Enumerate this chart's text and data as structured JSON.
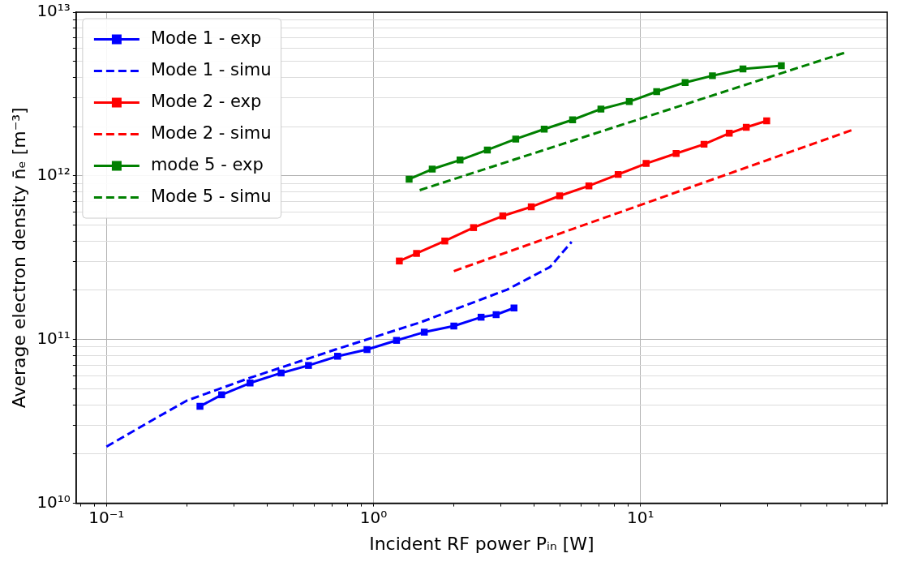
{
  "chart_data": {
    "type": "line",
    "xlabel": "Incident RF power Pᵢₙ [W]",
    "ylabel": "Average electron density n̄ₑ [m⁻³]",
    "log": "xy",
    "grid": true,
    "legend": "top left",
    "xlim": [
      0.077,
      84
    ],
    "ylim": [
      10000000000.0,
      10000000000000.0
    ],
    "xticks": [
      {
        "value": 0.08,
        "label": null
      },
      {
        "value": 0.09,
        "label": null
      },
      {
        "value": 0.1,
        "label": "10⁻¹"
      },
      {
        "value": 0.2,
        "label": null
      },
      {
        "value": 0.3,
        "label": null
      },
      {
        "value": 0.4,
        "label": null
      },
      {
        "value": 0.5,
        "label": null
      },
      {
        "value": 0.6,
        "label": null
      },
      {
        "value": 0.7,
        "label": null
      },
      {
        "value": 0.8,
        "label": null
      },
      {
        "value": 0.9,
        "label": null
      },
      {
        "value": 1,
        "label": "10⁰"
      },
      {
        "value": 2,
        "label": null
      },
      {
        "value": 3,
        "label": null
      },
      {
        "value": 4,
        "label": null
      },
      {
        "value": 5,
        "label": null
      },
      {
        "value": 6,
        "label": null
      },
      {
        "value": 7,
        "label": null
      },
      {
        "value": 8,
        "label": null
      },
      {
        "value": 9,
        "label": null
      },
      {
        "value": 10,
        "label": "10¹"
      },
      {
        "value": 20,
        "label": null
      },
      {
        "value": 30,
        "label": null
      },
      {
        "value": 40,
        "label": null
      },
      {
        "value": 50,
        "label": null
      },
      {
        "value": 60,
        "label": null
      },
      {
        "value": 70,
        "label": null
      },
      {
        "value": 80,
        "label": null
      }
    ],
    "yticks": [
      {
        "value": 10000000000.0,
        "label": "10¹⁰"
      },
      {
        "value": 20000000000.0,
        "label": null
      },
      {
        "value": 30000000000.0,
        "label": null
      },
      {
        "value": 40000000000.0,
        "label": null
      },
      {
        "value": 50000000000.0,
        "label": null
      },
      {
        "value": 60000000000.0,
        "label": null
      },
      {
        "value": 70000000000.0,
        "label": null
      },
      {
        "value": 80000000000.0,
        "label": null
      },
      {
        "value": 90000000000.0,
        "label": null
      },
      {
        "value": 100000000000.0,
        "label": "10¹¹"
      },
      {
        "value": 200000000000.0,
        "label": null
      },
      {
        "value": 300000000000.0,
        "label": null
      },
      {
        "value": 400000000000.0,
        "label": null
      },
      {
        "value": 500000000000.0,
        "label": null
      },
      {
        "value": 600000000000.0,
        "label": null
      },
      {
        "value": 700000000000.0,
        "label": null
      },
      {
        "value": 800000000000.0,
        "label": null
      },
      {
        "value": 900000000000.0,
        "label": null
      },
      {
        "value": 1000000000000.0,
        "label": "10¹²"
      },
      {
        "value": 2000000000000.0,
        "label": null
      },
      {
        "value": 3000000000000.0,
        "label": null
      },
      {
        "value": 4000000000000.0,
        "label": null
      },
      {
        "value": 5000000000000.0,
        "label": null
      },
      {
        "value": 6000000000000.0,
        "label": null
      },
      {
        "value": 7000000000000.0,
        "label": null
      },
      {
        "value": 8000000000000.0,
        "label": null
      },
      {
        "value": 9000000000000.0,
        "label": null
      },
      {
        "value": 10000000000000.0,
        "label": "10¹³"
      }
    ],
    "series": [
      {
        "name": "Mode 1 - exp",
        "color": "#0000ff",
        "marker": "square",
        "line_style": "solid",
        "x": [
          0.224,
          0.27,
          0.345,
          0.451,
          0.571,
          0.734,
          0.946,
          1.22,
          1.55,
          2.0,
          2.53,
          2.88,
          3.36
        ],
        "values": [
          39100000000.0,
          46000000000.0,
          54300000000.0,
          62500000000.0,
          69500000000.0,
          79100000000.0,
          86900000000.0,
          98900000000.0,
          111000000000.0,
          121000000000.0,
          137000000000.0,
          142000000000.0,
          156000000000.0
        ]
      },
      {
        "name": "Mode 1 - simu",
        "color": "#0000ff",
        "marker": "none",
        "line_style": "dashed",
        "x": [
          0.1,
          0.151,
          0.2,
          0.343,
          0.72,
          1.51,
          3.17,
          4.59,
          5.52
        ],
        "values": [
          22200000000.0,
          32700000000.0,
          42400000000.0,
          58200000000.0,
          86900000000.0,
          128000000000.0,
          202000000000.0,
          278000000000.0,
          395000000000.0
        ]
      },
      {
        "name": "Mode 2 - exp",
        "color": "#ff0000",
        "marker": "square",
        "line_style": "solid",
        "x": [
          1.25,
          1.45,
          1.85,
          2.37,
          3.05,
          3.9,
          4.98,
          6.41,
          8.25,
          10.5,
          13.6,
          17.3,
          21.5,
          24.9,
          29.7
        ],
        "values": [
          302000000000.0,
          336000000000.0,
          400000000000.0,
          483000000000.0,
          569000000000.0,
          647000000000.0,
          755000000000.0,
          869000000000.0,
          1020000000000.0,
          1190000000000.0,
          1370000000000.0,
          1560000000000.0,
          1820000000000.0,
          1980000000000.0,
          2170000000000.0
        ]
      },
      {
        "name": "Mode 2 - simu",
        "color": "#ff0000",
        "marker": "none",
        "line_style": "dashed",
        "x": [
          2.0,
          63.4
        ],
        "values": [
          262000000000.0,
          1930000000000.0
        ]
      },
      {
        "name": "mode 5 - exp",
        "color": "#008000",
        "marker": "square",
        "line_style": "solid",
        "x": [
          1.36,
          1.66,
          2.11,
          2.67,
          3.41,
          4.36,
          5.57,
          7.11,
          9.08,
          11.5,
          14.7,
          18.6,
          24.2,
          33.7
        ],
        "values": [
          955000000000.0,
          1100000000000.0,
          1250000000000.0,
          1440000000000.0,
          1680000000000.0,
          1930000000000.0,
          2200000000000.0,
          2560000000000.0,
          2840000000000.0,
          3270000000000.0,
          3720000000000.0,
          4090000000000.0,
          4500000000000.0,
          4710000000000.0
        ]
      },
      {
        "name": "Mode 5 - simu",
        "color": "#008000",
        "marker": "none",
        "line_style": "dashed",
        "x": [
          1.49,
          58.9
        ],
        "values": [
          818000000000.0,
          5690000000000.0
        ]
      }
    ]
  }
}
